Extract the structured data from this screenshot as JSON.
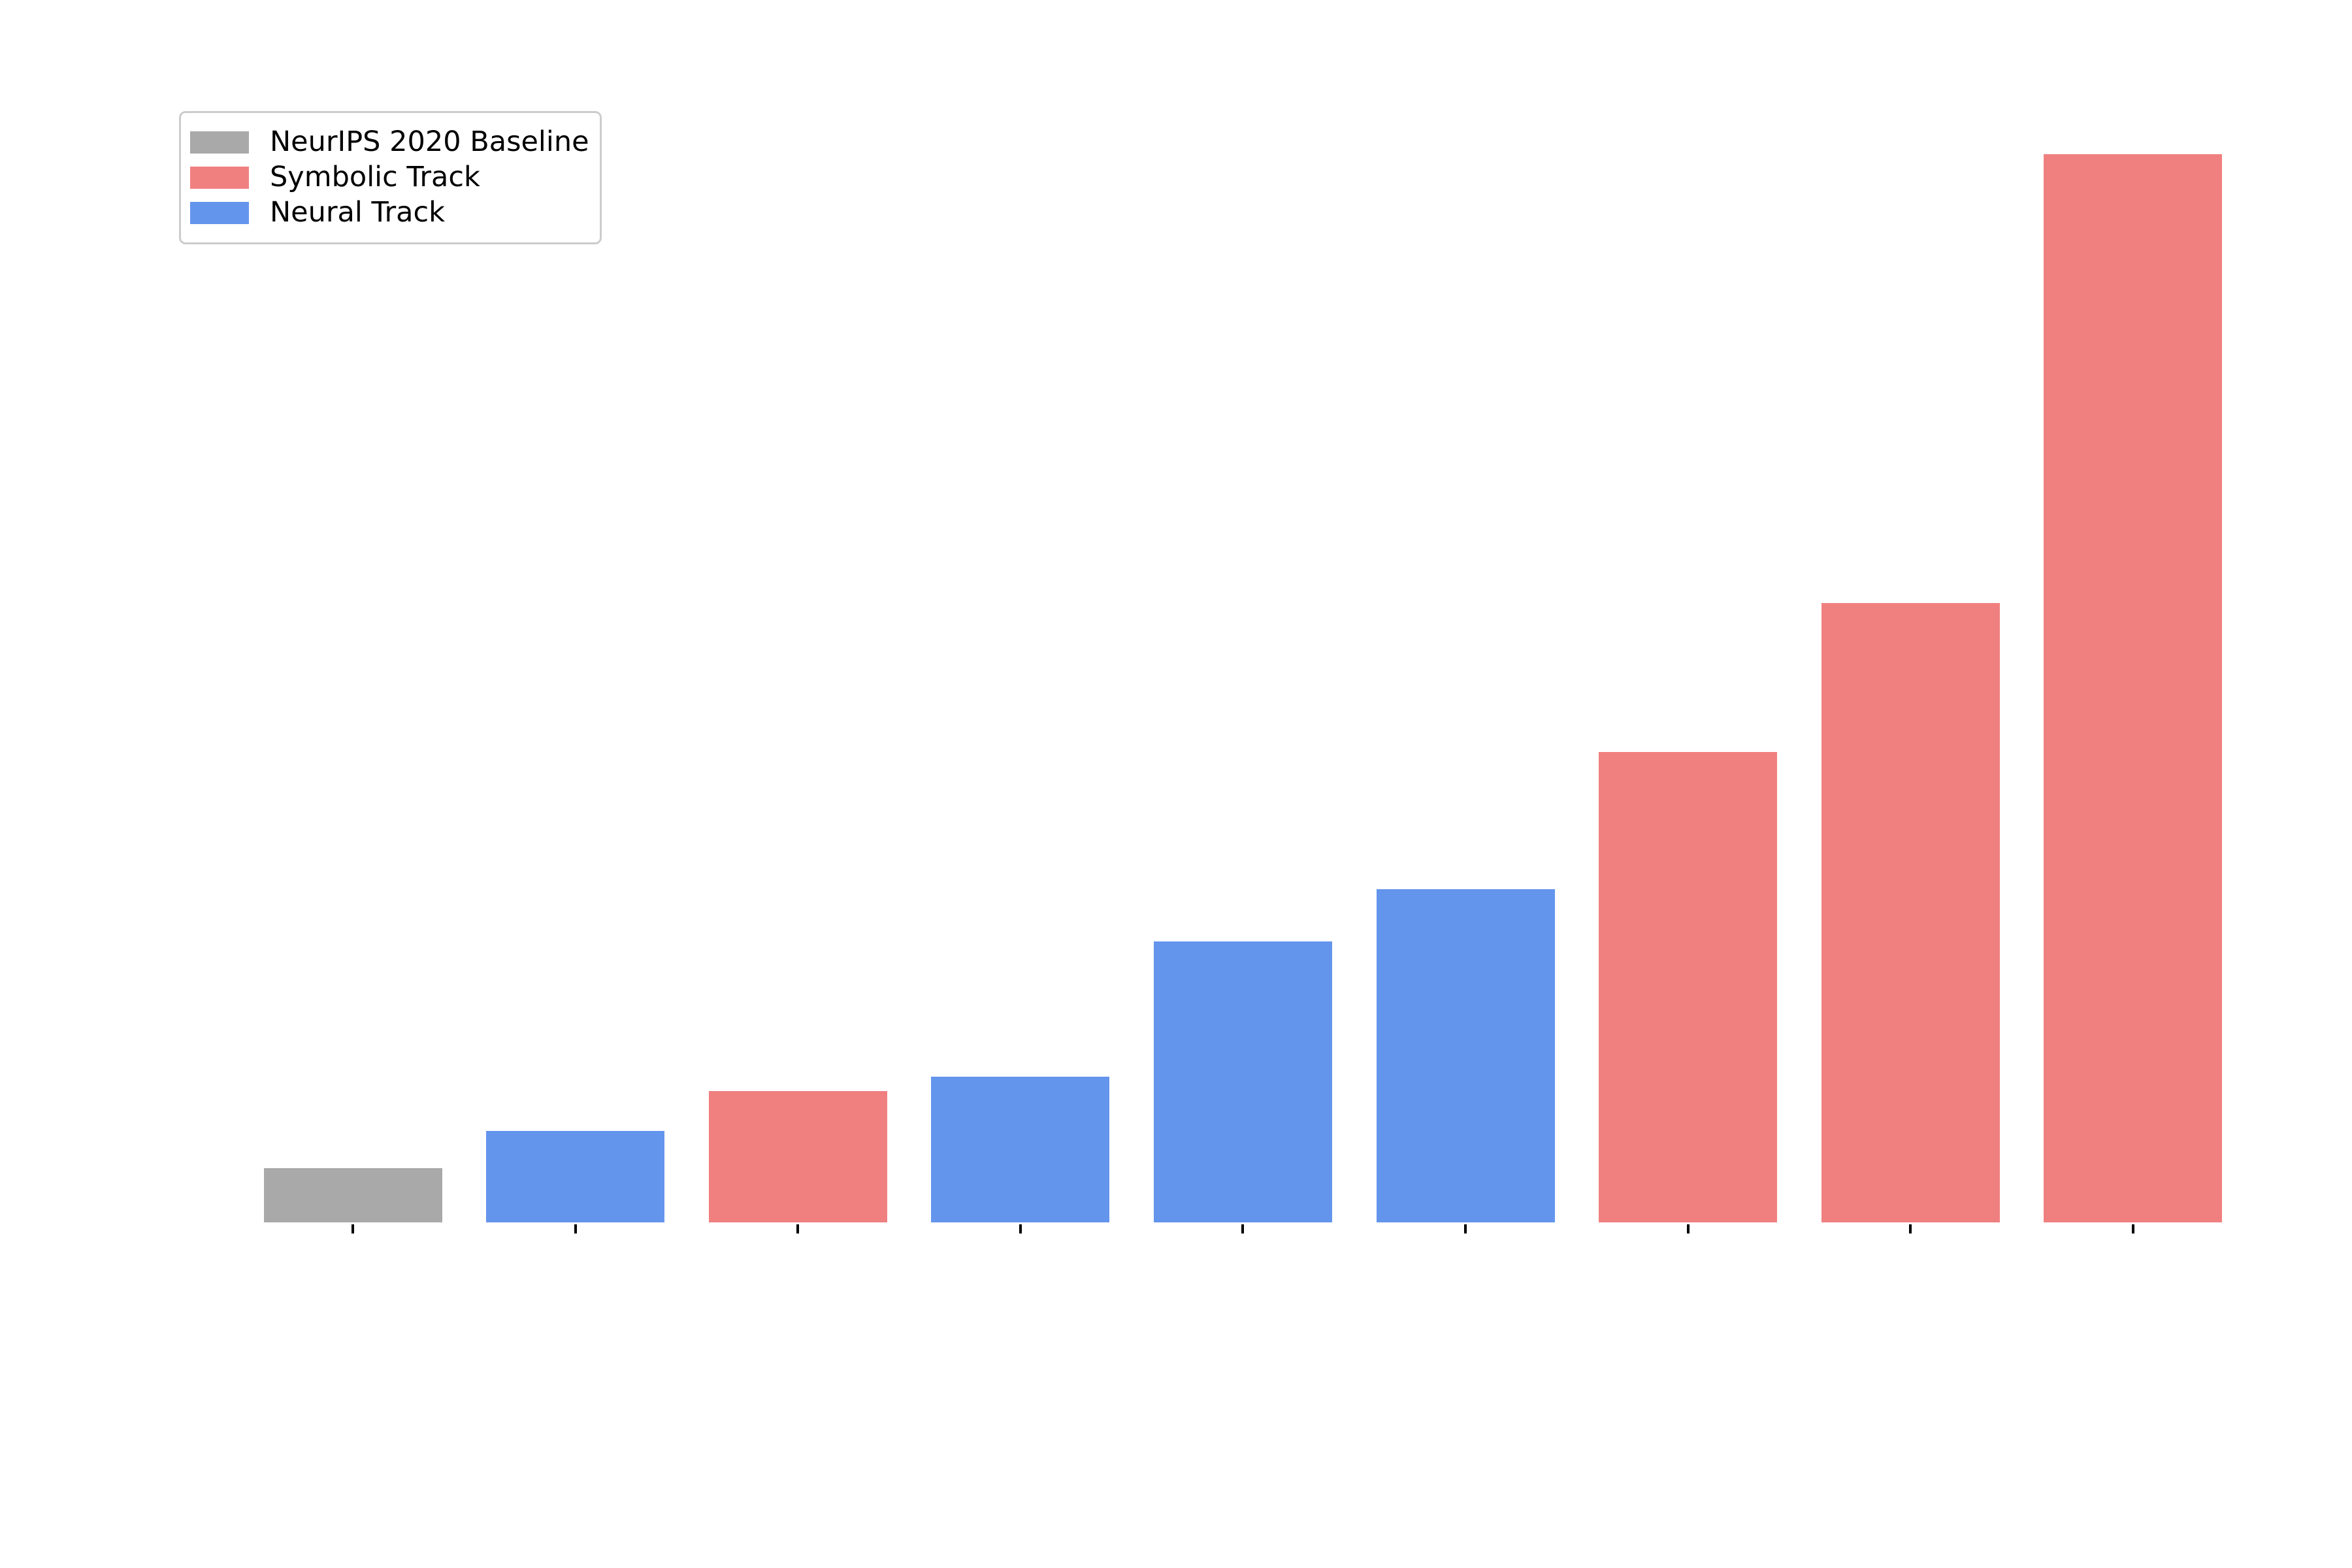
{
  "figure": {
    "background": "#ffffff"
  },
  "legend": {
    "position": "upper left",
    "border_color": "#cccccc",
    "entries": [
      {
        "label": "NeurIPS 2020 Baseline",
        "color": "#a9a9a9"
      },
      {
        "label": "Symbolic Track",
        "color": "#f08080"
      },
      {
        "label": "Neural Track",
        "color": "#6495ed"
      }
    ]
  },
  "chart_data": {
    "type": "bar",
    "title": "",
    "xlabel": "",
    "ylabel": "",
    "grid": false,
    "axes_spines_visible": false,
    "x_tick_marks": 9,
    "x_tick_labels": [],
    "y_tick_labels": [],
    "legend_position": "upper left",
    "value_units": "relative height (axis unlabeled); gray baseline bar = 1.0",
    "bars": [
      {
        "position": 1,
        "series": "NeurIPS 2020 Baseline",
        "color": "#a9a9a9",
        "value": 1.0
      },
      {
        "position": 2,
        "series": "Neural Track",
        "color": "#6495ed",
        "value": 1.69
      },
      {
        "position": 3,
        "series": "Symbolic Track",
        "color": "#f08080",
        "value": 2.42
      },
      {
        "position": 4,
        "series": "Neural Track",
        "color": "#6495ed",
        "value": 2.69
      },
      {
        "position": 5,
        "series": "Neural Track",
        "color": "#6495ed",
        "value": 5.18
      },
      {
        "position": 6,
        "series": "Neural Track",
        "color": "#6495ed",
        "value": 6.14
      },
      {
        "position": 7,
        "series": "Symbolic Track",
        "color": "#f08080",
        "value": 8.67
      },
      {
        "position": 8,
        "series": "Symbolic Track",
        "color": "#f08080",
        "value": 11.42
      },
      {
        "position": 9,
        "series": "Symbolic Track",
        "color": "#f08080",
        "value": 19.7
      }
    ]
  }
}
